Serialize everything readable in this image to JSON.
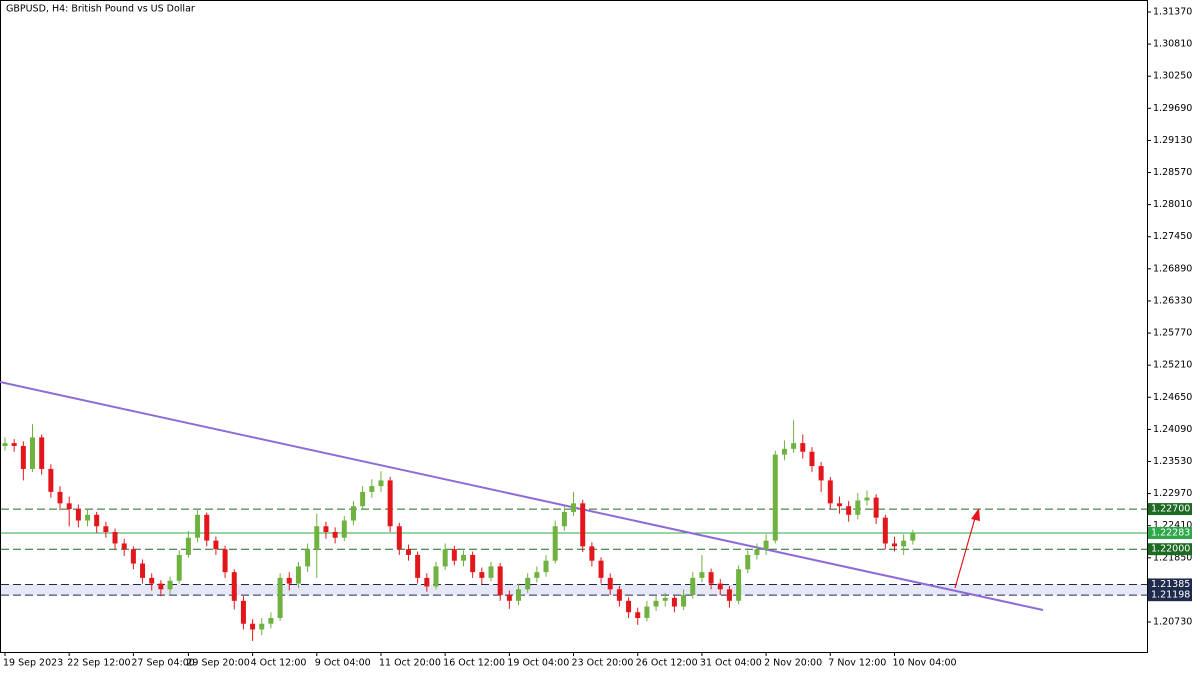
{
  "chart_data": {
    "type": "candlestick",
    "title": "GBPUSD, H4:  British Pound vs US Dollar",
    "categories": [
      "19 Sep 2023",
      null,
      null,
      null,
      null,
      null,
      null,
      "22 Sep 12:00",
      null,
      null,
      null,
      null,
      null,
      null,
      "27 Sep 04:00",
      null,
      null,
      null,
      null,
      null,
      "29 Sep 20:00",
      null,
      null,
      null,
      null,
      null,
      null,
      "4 Oct 12:00",
      null,
      null,
      null,
      null,
      null,
      null,
      "9 Oct 04:00",
      null,
      null,
      null,
      null,
      null,
      null,
      "11 Oct 20:00",
      null,
      null,
      null,
      null,
      null,
      null,
      "16 Oct 12:00",
      null,
      null,
      null,
      null,
      null,
      null,
      "19 Oct 04:00",
      null,
      null,
      null,
      null,
      null,
      null,
      "23 Oct 20:00",
      null,
      null,
      null,
      null,
      null,
      null,
      "26 Oct 12:00",
      null,
      null,
      null,
      null,
      null,
      null,
      "31 Oct 04:00",
      null,
      null,
      null,
      null,
      null,
      null,
      "2 Nov 20:00",
      null,
      null,
      null,
      null,
      null,
      null,
      "7 Nov 12:00",
      null,
      null,
      null,
      null,
      null,
      null,
      "10 Nov 04:00",
      null,
      null
    ],
    "open": [
      1.238,
      1.2385,
      1.238,
      1.234,
      1.2395,
      1.234,
      1.23,
      1.228,
      1.227,
      1.225,
      1.226,
      1.224,
      1.223,
      1.221,
      1.22,
      1.2175,
      1.215,
      1.214,
      1.213,
      1.2145,
      1.219,
      1.222,
      1.226,
      1.2215,
      1.22,
      1.216,
      1.211,
      1.207,
      1.206,
      1.207,
      1.208,
      1.215,
      1.214,
      1.217,
      1.22,
      1.224,
      1.223,
      1.222,
      1.225,
      1.2275,
      1.23,
      1.231,
      1.232,
      1.224,
      1.22,
      1.219,
      1.215,
      1.2135,
      1.217,
      1.22,
      1.218,
      1.219,
      1.216,
      1.215,
      1.217,
      1.212,
      1.211,
      1.213,
      1.215,
      1.216,
      1.218,
      1.224,
      1.2265,
      1.228,
      1.2205,
      1.218,
      1.215,
      1.213,
      1.211,
      1.209,
      1.208,
      1.21,
      1.211,
      1.2115,
      1.21,
      1.212,
      1.215,
      1.216,
      1.214,
      1.213,
      1.211,
      1.2165,
      1.219,
      1.22,
      1.2215,
      1.2365,
      1.2375,
      1.2385,
      1.237,
      1.2345,
      1.232,
      1.228,
      1.2275,
      1.226,
      1.2285,
      1.229,
      1.2255,
      1.221,
      1.2205,
      1.2215
    ],
    "high": [
      1.2395,
      1.2392,
      1.2388,
      1.2418,
      1.24,
      1.2348,
      1.231,
      1.2292,
      1.2278,
      1.227,
      1.2265,
      1.2248,
      1.2236,
      1.2218,
      1.2205,
      1.2182,
      1.2158,
      1.2146,
      1.2152,
      1.2198,
      1.2232,
      1.2268,
      1.2264,
      1.2222,
      1.2206,
      1.2165,
      1.2118,
      1.2078,
      1.208,
      1.209,
      1.2158,
      1.216,
      1.2178,
      1.221,
      1.2262,
      1.2248,
      1.2238,
      1.2258,
      1.2284,
      1.231,
      1.2322,
      1.2336,
      1.2326,
      1.2246,
      1.2208,
      1.2196,
      1.2158,
      1.2178,
      1.221,
      1.2206,
      1.2198,
      1.2196,
      1.2168,
      1.2178,
      1.2176,
      1.2128,
      1.214,
      1.2158,
      1.217,
      1.219,
      1.225,
      1.2275,
      1.23,
      1.2286,
      1.2212,
      1.2186,
      1.2158,
      1.2136,
      1.2116,
      1.2098,
      1.211,
      1.2118,
      1.2124,
      1.212,
      1.213,
      1.216,
      1.219,
      1.2166,
      1.2148,
      1.2136,
      1.2172,
      1.2198,
      1.221,
      1.2226,
      1.2372,
      1.239,
      1.2425,
      1.24,
      1.2378,
      1.2352,
      1.2326,
      1.2292,
      1.2284,
      1.2298,
      1.2302,
      1.2296,
      1.226,
      1.2222,
      1.2226,
      1.2234
    ],
    "low": [
      1.2372,
      1.237,
      1.232,
      1.2335,
      1.233,
      1.229,
      1.2268,
      1.224,
      1.2238,
      1.224,
      1.2228,
      1.222,
      1.22,
      1.2188,
      1.2165,
      1.214,
      1.2128,
      1.2118,
      1.2122,
      1.214,
      1.2185,
      1.2212,
      1.2205,
      1.219,
      1.215,
      1.2095,
      1.206,
      1.204,
      1.205,
      1.2062,
      1.2075,
      1.2128,
      1.2132,
      1.216,
      1.215,
      1.2218,
      1.221,
      1.2214,
      1.2242,
      1.2268,
      1.229,
      1.23,
      1.223,
      1.219,
      1.218,
      1.214,
      1.2126,
      1.213,
      1.2164,
      1.2172,
      1.217,
      1.215,
      1.2138,
      1.2144,
      1.211,
      1.2096,
      1.2102,
      1.2124,
      1.2142,
      1.2152,
      1.2175,
      1.2232,
      1.2258,
      1.2195,
      1.217,
      1.214,
      1.212,
      1.21,
      1.208,
      1.2068,
      1.2074,
      1.2092,
      1.21,
      1.209,
      1.2094,
      1.2114,
      1.2142,
      1.213,
      1.212,
      1.2098,
      1.2104,
      1.2158,
      1.2182,
      1.219,
      1.221,
      1.2355,
      1.2368,
      1.2358,
      1.2335,
      1.23,
      1.227,
      1.2262,
      1.2248,
      1.2252,
      1.2276,
      1.2244,
      1.22,
      1.2196,
      1.219,
      1.2208
    ],
    "close": [
      1.2385,
      1.238,
      1.234,
      1.2395,
      1.234,
      1.23,
      1.228,
      1.227,
      1.225,
      1.226,
      1.224,
      1.223,
      1.221,
      1.22,
      1.2175,
      1.215,
      1.214,
      1.213,
      1.2145,
      1.219,
      1.222,
      1.226,
      1.2215,
      1.22,
      1.216,
      1.211,
      1.207,
      1.206,
      1.207,
      1.208,
      1.215,
      1.214,
      1.217,
      1.22,
      1.224,
      1.223,
      1.222,
      1.225,
      1.2275,
      1.23,
      1.231,
      1.232,
      1.224,
      1.22,
      1.219,
      1.215,
      1.2135,
      1.217,
      1.22,
      1.218,
      1.219,
      1.216,
      1.215,
      1.217,
      1.212,
      1.211,
      1.213,
      1.215,
      1.216,
      1.218,
      1.224,
      1.2265,
      1.228,
      1.2205,
      1.218,
      1.215,
      1.213,
      1.211,
      1.209,
      1.208,
      1.21,
      1.211,
      1.2115,
      1.21,
      1.212,
      1.215,
      1.216,
      1.214,
      1.213,
      1.211,
      1.2165,
      1.219,
      1.22,
      1.2215,
      1.2365,
      1.2375,
      1.2385,
      1.237,
      1.2345,
      1.232,
      1.228,
      1.2275,
      1.226,
      1.2285,
      1.229,
      1.2255,
      1.221,
      1.2205,
      1.2215,
      1.2228
    ],
    "up_color": "#6fb23f",
    "down_color": "#e3161c",
    "ylim": [
      1.20207,
      1.31579
    ],
    "yticks": [
      {
        "value": 1.3137,
        "label": "1.31370"
      },
      {
        "value": 1.3081,
        "label": "1.30810"
      },
      {
        "value": 1.3025,
        "label": "1.30250"
      },
      {
        "value": 1.2969,
        "label": "1.29690"
      },
      {
        "value": 1.2913,
        "label": "1.29130"
      },
      {
        "value": 1.2857,
        "label": "1.28570"
      },
      {
        "value": 1.2801,
        "label": "1.28010"
      },
      {
        "value": 1.2745,
        "label": "1.27450"
      },
      {
        "value": 1.2689,
        "label": "1.26890"
      },
      {
        "value": 1.2633,
        "label": "1.26330"
      },
      {
        "value": 1.2577,
        "label": "1.25770"
      },
      {
        "value": 1.2521,
        "label": "1.25210"
      },
      {
        "value": 1.2465,
        "label": "1.24650"
      },
      {
        "value": 1.2409,
        "label": "1.24090"
      },
      {
        "value": 1.2353,
        "label": "1.23530"
      },
      {
        "value": 1.2297,
        "label": "1.22970"
      },
      {
        "value": 1.2241,
        "label": "1.22410"
      },
      {
        "value": 1.2185,
        "label": "1.21850"
      },
      {
        "value": 1.2073,
        "label": "1.20730"
      }
    ],
    "levels": [
      {
        "value": 1.227,
        "label": "1.22700",
        "style": "dashed",
        "color": "#1d6b23"
      },
      {
        "value": 1.22283,
        "label": "1.22283",
        "style": "solid",
        "color": "#2fa84a"
      },
      {
        "value": 1.22,
        "label": "1.22000",
        "style": "dashed",
        "color": "#1d6b23"
      },
      {
        "value": 1.21385,
        "label": "1.21385",
        "style": "dashed",
        "color": "#1f2b4d"
      },
      {
        "value": 1.21198,
        "label": "1.21198",
        "style": "dashed",
        "color": "#1f2b4d"
      }
    ],
    "band_color": "#e6e8f7"
  }
}
